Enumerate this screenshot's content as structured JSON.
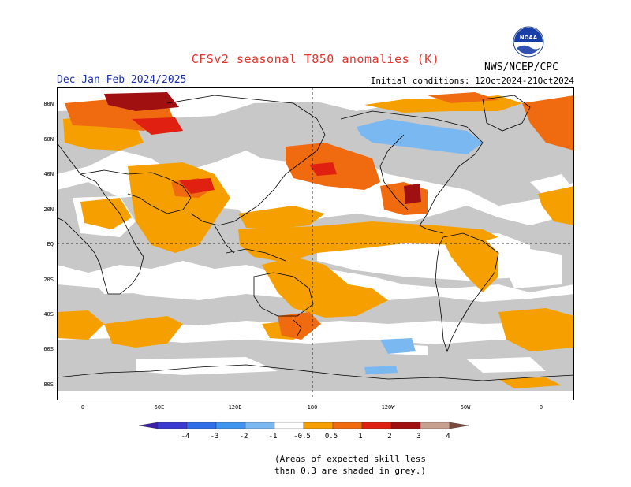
{
  "header": {
    "title": "CFSv2 seasonal T850 anomalies (K)",
    "period": "Dec-Jan-Feb 2024/2025",
    "initial_conditions": "Initial conditions: 12Oct2024-21Oct2024",
    "agency": "NWS/NCEP/CPC",
    "logo_text": "NOAA"
  },
  "map": {
    "lat_labels": [
      "80N",
      "60N",
      "40N",
      "20N",
      "EQ",
      "20S",
      "40S",
      "60S",
      "80S"
    ],
    "lon_labels": [
      "0",
      "60E",
      "120E",
      "180",
      "120W",
      "60W",
      "0"
    ],
    "grey_meaning": "low skill",
    "colors": {
      "land_grey": "#c8c8c8",
      "neutral": "#ffffff",
      "coast": "#000000"
    }
  },
  "colorbar": {
    "labels": [
      "-4",
      "-3",
      "-2",
      "-1",
      "-0.5",
      "0.5",
      "1",
      "2",
      "3",
      "4"
    ],
    "bins": [
      {
        "range": "< -4",
        "color": "#3a1fa8"
      },
      {
        "range": "-4 to -3",
        "color": "#3a3ad0"
      },
      {
        "range": "-3 to -2",
        "color": "#2e6fe8"
      },
      {
        "range": "-2 to -1",
        "color": "#3f95ee"
      },
      {
        "range": "-1 to -0.5",
        "color": "#7ab8f2"
      },
      {
        "range": "-0.5 to 0.5",
        "color": "#ffffff"
      },
      {
        "range": "0.5 to 1",
        "color": "#f5a000"
      },
      {
        "range": "1 to 2",
        "color": "#f06a10"
      },
      {
        "range": "2 to 3",
        "color": "#e02010"
      },
      {
        "range": "3 to 4",
        "color": "#a01010"
      },
      {
        "range": "4 to 5",
        "color": "#c8a090"
      },
      {
        "range": "> 5",
        "color": "#7a4a3a"
      }
    ]
  },
  "footnote": {
    "line1": "(Areas of expected skill less",
    "line2": "than 0.3 are shaded in grey.)"
  }
}
